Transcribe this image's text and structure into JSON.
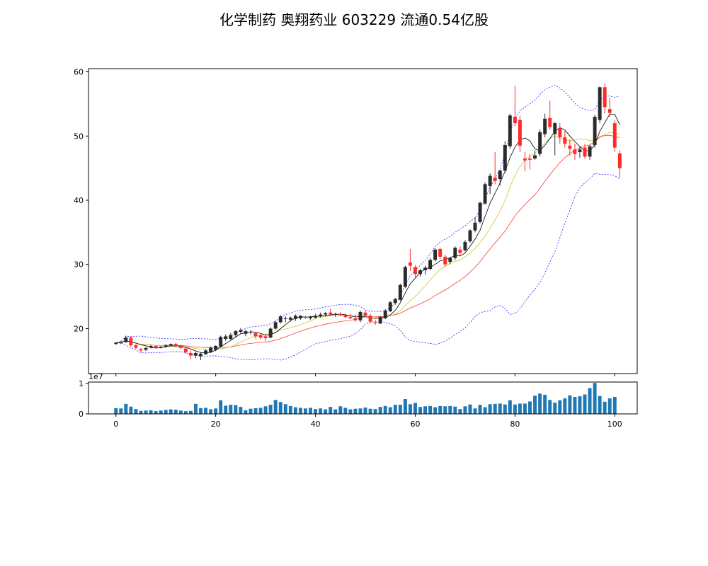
{
  "title": "化学制药 奥翔药业 603229 流通0.54亿股",
  "chart_data": {
    "type": "candlestick",
    "x_ticks": [
      "0",
      "20",
      "40",
      "60",
      "80",
      "100"
    ],
    "price_ticks": [
      "20",
      "30",
      "40",
      "50",
      "60"
    ],
    "volume_ticks": [
      "0",
      "1"
    ],
    "volume_exponent_label": "1e7",
    "xlim": [
      -5.5,
      104.5
    ],
    "price_ylim": [
      13,
      60.5
    ],
    "volume_ylim": [
      0,
      1.05
    ],
    "colors": {
      "up": "#2b2b2b",
      "down": "#ff2a2a",
      "volume": "#1f77b4",
      "ma_fast": "#000000",
      "ma_mid": "#c8c832",
      "ma_slow": "#ff3b30",
      "band": "#2a2aff"
    },
    "ohlc": [
      [
        17.6,
        17.9,
        17.5,
        17.8
      ],
      [
        17.8,
        18.1,
        17.6,
        17.9
      ],
      [
        17.9,
        18.9,
        17.8,
        18.6
      ],
      [
        18.6,
        18.8,
        17.2,
        17.4
      ],
      [
        17.4,
        17.6,
        16.8,
        17.0
      ],
      [
        16.8,
        17.0,
        16.3,
        16.6
      ],
      [
        16.7,
        17.1,
        16.5,
        17.0
      ],
      [
        17.1,
        17.5,
        16.9,
        17.3
      ],
      [
        17.3,
        17.4,
        16.9,
        17.0
      ],
      [
        17.1,
        17.3,
        16.9,
        17.2
      ],
      [
        17.2,
        17.6,
        17.0,
        17.4
      ],
      [
        17.4,
        17.7,
        17.2,
        17.6
      ],
      [
        17.6,
        17.8,
        17.1,
        17.3
      ],
      [
        17.3,
        17.5,
        16.8,
        17.0
      ],
      [
        16.9,
        17.0,
        16.1,
        16.3
      ],
      [
        16.2,
        16.6,
        15.2,
        15.8
      ],
      [
        15.8,
        16.4,
        15.4,
        16.2
      ],
      [
        15.7,
        16.3,
        15.1,
        16.1
      ],
      [
        16.0,
        16.8,
        15.9,
        16.6
      ],
      [
        16.3,
        17.2,
        16.2,
        17.0
      ],
      [
        16.7,
        17.4,
        16.5,
        17.3
      ],
      [
        17.2,
        18.9,
        17.1,
        18.7
      ],
      [
        18.4,
        19.1,
        18.1,
        18.8
      ],
      [
        18.4,
        19.3,
        18.2,
        19.0
      ],
      [
        19.0,
        19.8,
        18.7,
        19.6
      ],
      [
        19.5,
        20.1,
        19.2,
        19.8
      ],
      [
        19.2,
        19.8,
        18.8,
        19.6
      ],
      [
        19.4,
        19.8,
        19.1,
        19.5
      ],
      [
        19.3,
        19.5,
        18.4,
        18.8
      ],
      [
        19.0,
        19.3,
        18.3,
        18.6
      ],
      [
        18.8,
        19.2,
        18.0,
        18.5
      ],
      [
        18.6,
        20.2,
        18.5,
        20.0
      ],
      [
        20.0,
        21.2,
        19.8,
        21.0
      ],
      [
        21.0,
        22.1,
        20.8,
        21.9
      ],
      [
        21.5,
        21.9,
        21.0,
        21.6
      ],
      [
        21.4,
        21.9,
        21.1,
        21.7
      ],
      [
        21.5,
        22.2,
        21.2,
        22.0
      ],
      [
        21.6,
        22.1,
        21.4,
        22.0
      ],
      [
        21.8,
        22.0,
        21.5,
        21.7
      ],
      [
        21.6,
        22.0,
        21.4,
        21.8
      ],
      [
        21.7,
        22.3,
        21.6,
        22.0
      ],
      [
        21.9,
        22.5,
        21.7,
        22.2
      ],
      [
        22.2,
        22.6,
        21.9,
        22.4
      ],
      [
        22.5,
        23.1,
        22.0,
        22.2
      ],
      [
        22.2,
        22.5,
        21.8,
        22.3
      ],
      [
        22.3,
        22.6,
        21.9,
        22.1
      ],
      [
        22.1,
        22.4,
        21.6,
        21.8
      ],
      [
        21.8,
        22.3,
        21.5,
        21.6
      ],
      [
        21.6,
        22.2,
        21.1,
        21.3
      ],
      [
        21.3,
        22.8,
        21.0,
        22.6
      ],
      [
        22.5,
        22.9,
        21.8,
        22.0
      ],
      [
        22.0,
        22.3,
        20.8,
        21.1
      ],
      [
        21.0,
        21.4,
        20.6,
        20.9
      ],
      [
        20.8,
        22.0,
        20.7,
        21.8
      ],
      [
        21.6,
        23.0,
        21.5,
        22.8
      ],
      [
        22.7,
        24.3,
        22.6,
        24.1
      ],
      [
        24.0,
        24.8,
        23.7,
        24.6
      ],
      [
        24.5,
        27.0,
        24.3,
        26.8
      ],
      [
        26.5,
        29.8,
        26.3,
        29.6
      ],
      [
        30.3,
        32.4,
        29.0,
        29.8
      ],
      [
        29.6,
        29.9,
        27.8,
        28.5
      ],
      [
        28.5,
        29.3,
        28.1,
        29.1
      ],
      [
        29.1,
        29.8,
        28.4,
        29.5
      ],
      [
        29.3,
        31.0,
        29.1,
        30.7
      ],
      [
        30.7,
        32.5,
        30.5,
        32.3
      ],
      [
        32.4,
        32.6,
        30.8,
        31.2
      ],
      [
        31.2,
        31.5,
        29.6,
        30.0
      ],
      [
        30.4,
        31.2,
        30.0,
        31.0
      ],
      [
        31.0,
        32.8,
        30.7,
        32.6
      ],
      [
        32.3,
        32.8,
        31.3,
        31.8
      ],
      [
        32.2,
        33.8,
        32.0,
        33.5
      ],
      [
        33.6,
        35.5,
        33.4,
        35.3
      ],
      [
        35.3,
        37.4,
        35.0,
        36.5
      ],
      [
        36.6,
        39.8,
        36.4,
        39.6
      ],
      [
        39.5,
        42.8,
        39.3,
        42.5
      ],
      [
        42.2,
        44.2,
        41.0,
        43.8
      ],
      [
        43.5,
        47.5,
        42.5,
        43.0
      ],
      [
        43.3,
        44.8,
        42.3,
        44.6
      ],
      [
        44.6,
        49.2,
        44.3,
        48.6
      ],
      [
        48.4,
        53.5,
        48.0,
        53.2
      ],
      [
        53.0,
        57.8,
        51.5,
        52.0
      ],
      [
        52.5,
        53.2,
        47.5,
        48.5
      ],
      [
        46.5,
        47.5,
        44.5,
        46.2
      ],
      [
        46.5,
        47.2,
        44.8,
        46.3
      ],
      [
        46.5,
        47.8,
        46.3,
        47.0
      ],
      [
        47.2,
        51.0,
        46.8,
        50.6
      ],
      [
        50.3,
        53.5,
        49.8,
        52.7
      ],
      [
        52.8,
        55.5,
        51.0,
        51.4
      ],
      [
        50.3,
        52.2,
        47.0,
        52.0
      ],
      [
        51.2,
        52.0,
        48.8,
        49.8
      ],
      [
        49.8,
        50.8,
        48.2,
        48.8
      ],
      [
        48.5,
        49.5,
        47.0,
        48.0
      ],
      [
        47.9,
        48.8,
        46.3,
        47.2
      ],
      [
        47.5,
        48.4,
        46.6,
        47.9
      ],
      [
        48.2,
        48.8,
        46.5,
        46.8
      ],
      [
        46.8,
        48.6,
        46.3,
        48.4
      ],
      [
        48.6,
        53.3,
        48.2,
        53.0
      ],
      [
        52.5,
        57.7,
        52.0,
        57.6
      ],
      [
        57.6,
        58.2,
        53.5,
        54.5
      ],
      [
        54.2,
        56.0,
        53.0,
        53.6
      ],
      [
        52.0,
        52.5,
        47.5,
        48.2
      ],
      [
        47.3,
        47.8,
        43.5,
        45.0
      ]
    ],
    "volume": [
      0.19,
      0.18,
      0.33,
      0.24,
      0.16,
      0.1,
      0.11,
      0.12,
      0.09,
      0.11,
      0.13,
      0.15,
      0.14,
      0.11,
      0.09,
      0.1,
      0.33,
      0.19,
      0.2,
      0.15,
      0.18,
      0.45,
      0.27,
      0.3,
      0.29,
      0.23,
      0.12,
      0.17,
      0.19,
      0.2,
      0.25,
      0.3,
      0.46,
      0.39,
      0.32,
      0.26,
      0.22,
      0.2,
      0.18,
      0.2,
      0.16,
      0.18,
      0.15,
      0.23,
      0.15,
      0.25,
      0.2,
      0.15,
      0.17,
      0.18,
      0.21,
      0.17,
      0.16,
      0.23,
      0.26,
      0.22,
      0.3,
      0.3,
      0.49,
      0.32,
      0.36,
      0.23,
      0.25,
      0.26,
      0.22,
      0.26,
      0.25,
      0.26,
      0.24,
      0.16,
      0.25,
      0.31,
      0.18,
      0.3,
      0.22,
      0.32,
      0.33,
      0.34,
      0.31,
      0.45,
      0.31,
      0.34,
      0.34,
      0.41,
      0.6,
      0.67,
      0.63,
      0.46,
      0.37,
      0.45,
      0.51,
      0.61,
      0.56,
      0.58,
      0.64,
      0.85,
      1.02,
      0.59,
      0.4,
      0.51,
      0.56
    ]
  }
}
